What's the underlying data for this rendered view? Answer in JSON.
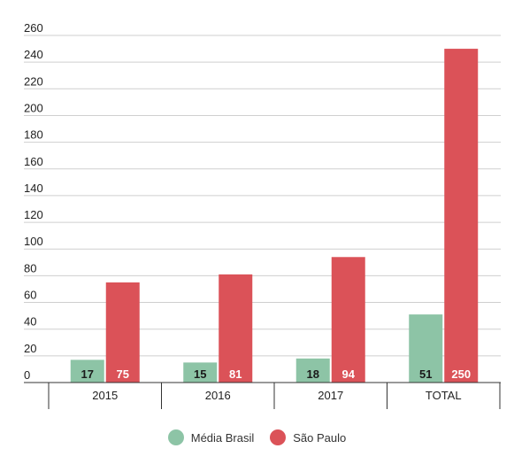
{
  "chart_data": {
    "type": "bar",
    "categories": [
      "2015",
      "2016",
      "2017",
      "TOTAL"
    ],
    "series": [
      {
        "name": "Média Brasil",
        "color": "#8dc4a6",
        "values": [
          17,
          15,
          18,
          51
        ]
      },
      {
        "name": "São Paulo",
        "color": "#db5258",
        "values": [
          75,
          81,
          94,
          250
        ]
      }
    ],
    "ylim": [
      0,
      260
    ],
    "yticks": [
      0,
      20,
      40,
      60,
      80,
      100,
      120,
      140,
      160,
      180,
      200,
      220,
      240,
      260
    ],
    "grid": true,
    "legend_position": "bottom"
  }
}
